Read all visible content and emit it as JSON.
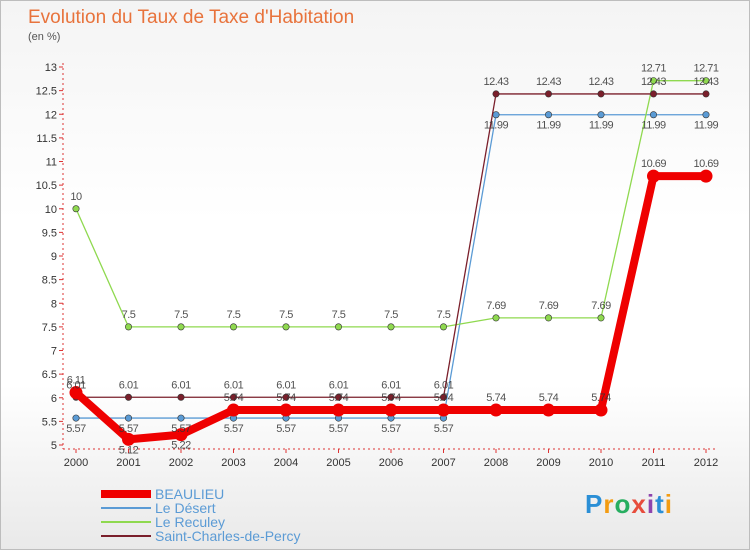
{
  "title": "Evolution du Taux de Taxe d'Habitation",
  "unit": "(en %)",
  "logo": {
    "text": "Proxiti"
  },
  "colors": {
    "beaulieu": "#ef0000",
    "desert": "#5b9bd5",
    "reculey": "#8fd94f",
    "saintcharles": "#7a1f2b",
    "title": "#e8733c"
  },
  "chart_data": {
    "type": "line",
    "title": "Evolution du Taux de Taxe d'Habitation",
    "ylabel": "(en %)",
    "x": [
      "2000",
      "2001",
      "2002",
      "2003",
      "2004",
      "2005",
      "2006",
      "2007",
      "2008",
      "2009",
      "2010",
      "2011",
      "2012"
    ],
    "yticks": [
      "5",
      "5.5",
      "6",
      "6.5",
      "7",
      "7.5",
      "8",
      "8.5",
      "9",
      "9.5",
      "10",
      "10.5",
      "11",
      "11.5",
      "12",
      "12.5",
      "13"
    ],
    "ylim": [
      5,
      13
    ],
    "grid": false,
    "legend_position": "bottom-left",
    "series": [
      {
        "name": "BEAULIEU",
        "color": "#ef0000",
        "values": [
          6.11,
          5.12,
          5.22,
          5.74,
          5.74,
          5.74,
          5.74,
          5.74,
          5.74,
          5.74,
          5.74,
          10.69,
          10.69
        ],
        "labels": [
          "6.11",
          "5.12",
          "5.22",
          "5.74",
          "5.74",
          "5.74",
          "5.74",
          "5.74",
          "5.74",
          "5.74",
          "5.74",
          "10.69",
          "10.69"
        ]
      },
      {
        "name": "Le Désert",
        "color": "#5b9bd5",
        "values": [
          5.57,
          5.57,
          5.57,
          5.57,
          5.57,
          5.57,
          5.57,
          5.57,
          11.99,
          11.99,
          11.99,
          11.99,
          11.99
        ],
        "labels": [
          "5.57",
          "5.57",
          "5.57",
          "5.57",
          "5.57",
          "5.57",
          "5.57",
          "5.57",
          "11.99",
          "11.99",
          "11.99",
          "11.99",
          "11.99"
        ]
      },
      {
        "name": "Le Reculey",
        "color": "#8fd94f",
        "values": [
          10,
          7.5,
          7.5,
          7.5,
          7.5,
          7.5,
          7.5,
          7.5,
          7.69,
          7.69,
          7.69,
          12.71,
          12.71
        ],
        "labels": [
          "10",
          "7.5",
          "7.5",
          "7.5",
          "7.5",
          "7.5",
          "7.5",
          "7.5",
          "7.69",
          "7.69",
          "7.69",
          "12.71",
          "12.71"
        ]
      },
      {
        "name": "Saint-Charles-de-Percy",
        "color": "#7a1f2b",
        "values": [
          6.01,
          6.01,
          6.01,
          6.01,
          6.01,
          6.01,
          6.01,
          6.01,
          12.43,
          12.43,
          12.43,
          12.43,
          12.43
        ],
        "labels": [
          "6.01",
          "6.01",
          "6.01",
          "6.01",
          "6.01",
          "6.01",
          "6.01",
          "6.01",
          "12.43",
          "12.43",
          "12.43",
          "12.43",
          "12.43"
        ]
      }
    ]
  }
}
